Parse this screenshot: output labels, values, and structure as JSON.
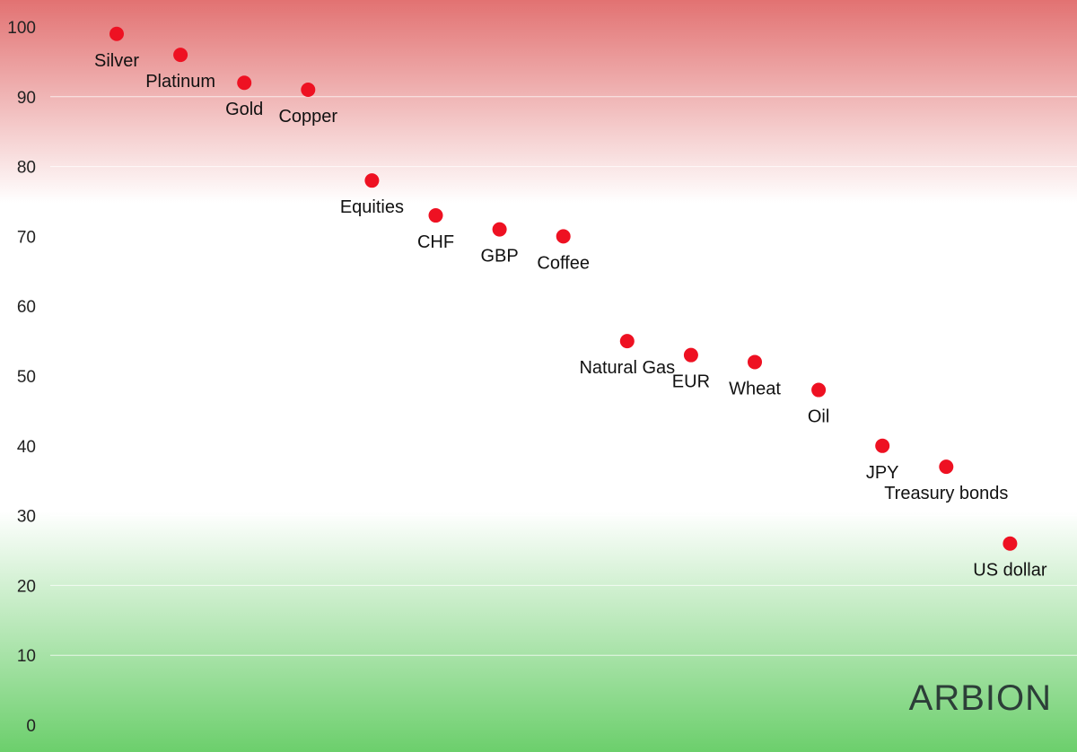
{
  "chart_data": {
    "type": "scatter",
    "title": "",
    "xlabel": "",
    "ylabel": "",
    "ylim": [
      0,
      100
    ],
    "yticks": [
      0,
      10,
      20,
      30,
      40,
      50,
      60,
      70,
      80,
      90,
      100
    ],
    "grid": true,
    "background_zones": [
      "red (high)",
      "white (middle)",
      "green (low)"
    ],
    "points": [
      {
        "label": "Silver",
        "x": 1,
        "y": 99
      },
      {
        "label": "Platinum",
        "x": 2,
        "y": 96
      },
      {
        "label": "Gold",
        "x": 3,
        "y": 92
      },
      {
        "label": "Copper",
        "x": 4,
        "y": 91
      },
      {
        "label": "Equities",
        "x": 5,
        "y": 78
      },
      {
        "label": "CHF",
        "x": 6,
        "y": 73
      },
      {
        "label": "GBP",
        "x": 7,
        "y": 71
      },
      {
        "label": "Coffee",
        "x": 8,
        "y": 70
      },
      {
        "label": "Natural Gas",
        "x": 9,
        "y": 55
      },
      {
        "label": "EUR",
        "x": 10,
        "y": 53
      },
      {
        "label": "Wheat",
        "x": 11,
        "y": 52
      },
      {
        "label": "Oil",
        "x": 12,
        "y": 48
      },
      {
        "label": "JPY",
        "x": 13,
        "y": 40
      },
      {
        "label": "Treasury bonds",
        "x": 14,
        "y": 37
      },
      {
        "label": "US dollar",
        "x": 15,
        "y": 26
      }
    ]
  },
  "colors": {
    "point": "#ee1122",
    "zone_high": "#e27272",
    "zone_low": "#6ccf6c",
    "watermark": "#2c3e38"
  },
  "brand": {
    "watermark": "ARBION"
  }
}
